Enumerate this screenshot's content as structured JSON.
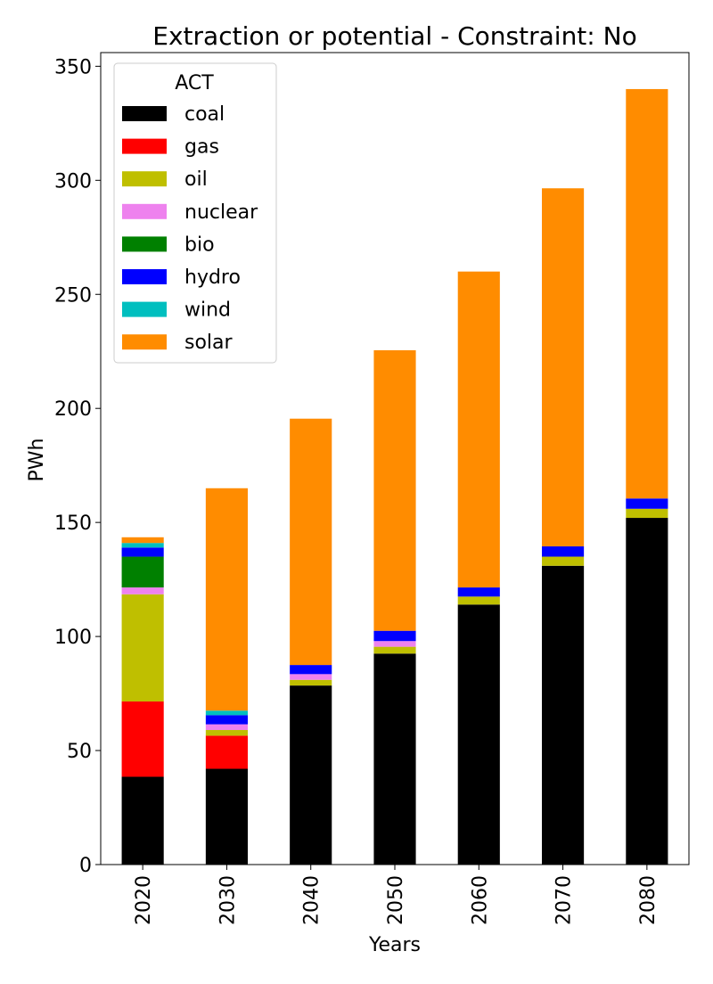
{
  "chart_data": {
    "type": "bar",
    "stacked": true,
    "title": "Extraction or potential - Constraint: No",
    "xlabel": "Years",
    "ylabel": "PWh",
    "ylim": [
      0,
      356
    ],
    "yticks": [
      0,
      50,
      100,
      150,
      200,
      250,
      300,
      350
    ],
    "grid": false,
    "legend": {
      "title": "ACT",
      "placement": "top-left"
    },
    "categories": [
      "2020",
      "2030",
      "2040",
      "2050",
      "2060",
      "2070",
      "2080"
    ],
    "series": [
      {
        "name": "coal",
        "color": "#000000",
        "values": [
          38.5,
          42,
          78.5,
          92.5,
          114,
          131,
          152
        ]
      },
      {
        "name": "gas",
        "color": "#ff0000",
        "values": [
          33,
          14.5,
          0,
          0,
          0,
          0,
          0
        ]
      },
      {
        "name": "oil",
        "color": "#bfbf00",
        "values": [
          47,
          2.5,
          2.5,
          3,
          3.5,
          4,
          4
        ]
      },
      {
        "name": "nuclear",
        "color": "#ee82ee",
        "values": [
          3,
          2.5,
          2.5,
          2.5,
          0,
          0,
          0
        ]
      },
      {
        "name": "bio",
        "color": "#008000",
        "values": [
          13.5,
          0,
          0,
          0,
          0,
          0,
          0
        ]
      },
      {
        "name": "hydro",
        "color": "#0000ff",
        "values": [
          4,
          4,
          4,
          4.5,
          4,
          4.5,
          4.5
        ]
      },
      {
        "name": "wind",
        "color": "#00bfbf",
        "values": [
          2,
          2,
          0,
          0,
          0,
          0,
          0
        ]
      },
      {
        "name": "solar",
        "color": "#ff8c00",
        "values": [
          2.5,
          97.5,
          108,
          123,
          138.5,
          157,
          179.5
        ]
      }
    ]
  }
}
